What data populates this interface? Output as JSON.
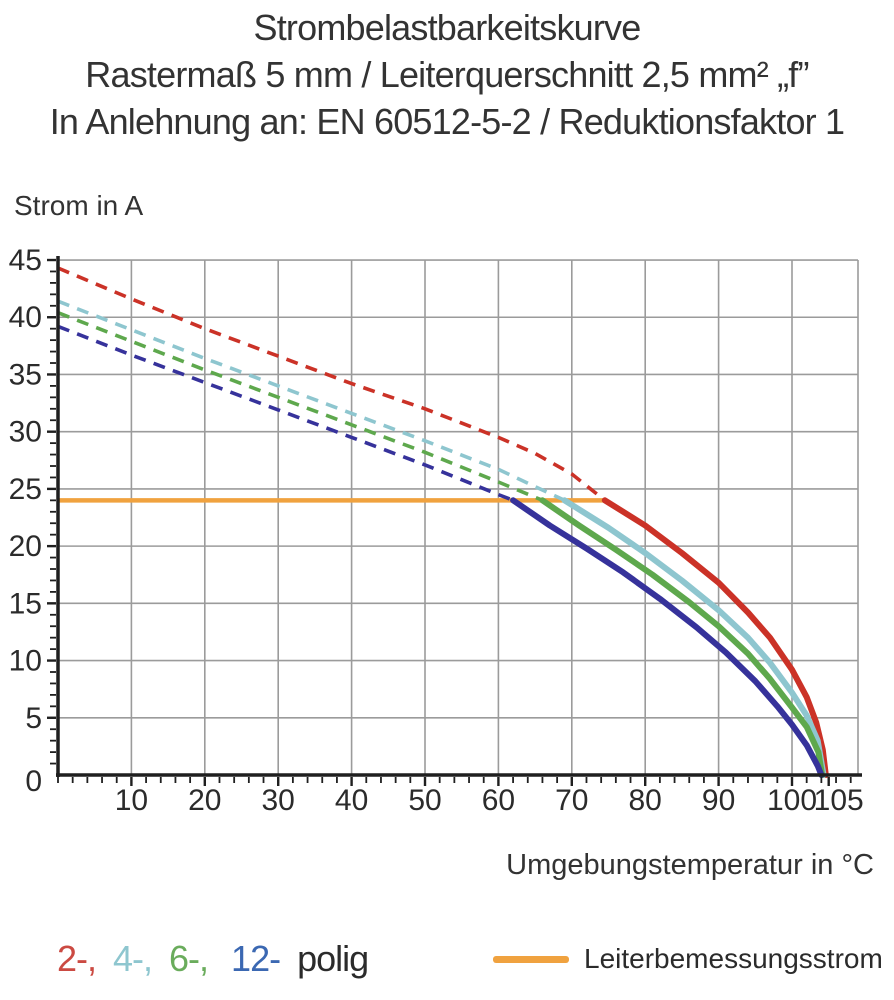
{
  "title": {
    "line1": "Strombelastbarkeitskurve",
    "line2": "Rastermaß 5 mm / Leiterquerschnitt 2,5 mm² „f”",
    "line3": "In Anlehnung an: EN 60512-5-2 / Reduktionsfaktor 1"
  },
  "legend": {
    "poles": [
      {
        "label": "2-,",
        "color": "#cb4a42"
      },
      {
        "label": "4-,",
        "color": "#8ec6cf"
      },
      {
        "label": "6-,",
        "color": "#6aac5c"
      },
      {
        "label": "12-",
        "color": "#3b68b2"
      },
      {
        "label": "polig",
        "color": "#2b2b2b"
      }
    ],
    "limit_label": "Leiterbemessungsstrom"
  },
  "chart_data": {
    "type": "line",
    "title": "Strombelastbarkeitskurve",
    "subtitle": "Rastermaß 5 mm / Leiterquerschnitt 2,5 mm² „f” / In Anlehnung an: EN 60512-5-2 / Reduktionsfaktor 1",
    "xlabel": "Umgebungstemperatur in °C",
    "ylabel": "Strom in A",
    "xlim": [
      0,
      109
    ],
    "ylim": [
      0,
      45
    ],
    "grid": true,
    "x_major_grid_step": 10,
    "y_major_grid_step": 5,
    "x_minor_tick_step": 2,
    "y_minor_tick_step": 1,
    "x_tick_labels": [
      {
        "t": 10,
        "label": "10"
      },
      {
        "t": 20,
        "label": "20"
      },
      {
        "t": 30,
        "label": "30"
      },
      {
        "t": 40,
        "label": "40"
      },
      {
        "t": 50,
        "label": "50"
      },
      {
        "t": 60,
        "label": "60"
      },
      {
        "t": 70,
        "label": "70"
      },
      {
        "t": 80,
        "label": "80"
      },
      {
        "t": 90,
        "label": "90"
      },
      {
        "t": 100,
        "label": "100"
      },
      {
        "t": 105,
        "label": "105",
        "dx": 10
      }
    ],
    "y_tick_labels": [
      {
        "a": 45,
        "label": "45"
      },
      {
        "a": 40,
        "label": "40"
      },
      {
        "a": 35,
        "label": "35"
      },
      {
        "a": 30,
        "label": "30"
      },
      {
        "a": 25,
        "label": "25"
      },
      {
        "a": 20,
        "label": "20"
      },
      {
        "a": 15,
        "label": "15"
      },
      {
        "a": 10,
        "label": "10"
      },
      {
        "a": 5,
        "label": "5"
      },
      {
        "a": 0,
        "label": "0",
        "dy": 6
      }
    ],
    "axis_color": "#1f1f1f",
    "grid_color": "#9b9b9b",
    "limit_line": {
      "label": "Leiterbemessungsstrom",
      "value": 24,
      "color": "#f0a23f",
      "x_start": 0,
      "x_end": 74.5
    },
    "series": [
      {
        "name": "2-polig",
        "color": "#cb3227",
        "dashed_above_limit": true,
        "points_dashed": [
          [
            0,
            44.3
          ],
          [
            10,
            41.6
          ],
          [
            20,
            39.0
          ],
          [
            30,
            36.6
          ],
          [
            40,
            34.2
          ],
          [
            50,
            32.0
          ],
          [
            60,
            29.5
          ],
          [
            65,
            28.1
          ],
          [
            70,
            26.3
          ],
          [
            74.5,
            24.0
          ]
        ],
        "points_solid": [
          [
            74.5,
            24.0
          ],
          [
            80,
            21.8
          ],
          [
            85,
            19.4
          ],
          [
            90,
            16.8
          ],
          [
            94,
            14.2
          ],
          [
            97,
            12.0
          ],
          [
            100,
            9.2
          ],
          [
            102,
            6.8
          ],
          [
            103.3,
            4.6
          ],
          [
            104.2,
            2.2
          ],
          [
            104.6,
            0
          ]
        ]
      },
      {
        "name": "4-polig",
        "color": "#8ec6cf",
        "dashed_above_limit": true,
        "points_dashed": [
          [
            0,
            41.4
          ],
          [
            10,
            38.9
          ],
          [
            20,
            36.4
          ],
          [
            30,
            34.0
          ],
          [
            40,
            31.6
          ],
          [
            50,
            29.2
          ],
          [
            60,
            26.7
          ],
          [
            65,
            25.2
          ],
          [
            69,
            24.0
          ]
        ],
        "points_solid": [
          [
            69,
            24.0
          ],
          [
            75,
            21.6
          ],
          [
            80,
            19.4
          ],
          [
            85,
            17.0
          ],
          [
            90,
            14.4
          ],
          [
            94,
            12.0
          ],
          [
            97,
            9.8
          ],
          [
            100,
            7.2
          ],
          [
            102,
            5.2
          ],
          [
            103.5,
            3.0
          ],
          [
            104.3,
            0
          ]
        ]
      },
      {
        "name": "6-polig",
        "color": "#5ea84d",
        "dashed_above_limit": true,
        "points_dashed": [
          [
            0,
            40.4
          ],
          [
            10,
            37.9
          ],
          [
            20,
            35.4
          ],
          [
            30,
            33.0
          ],
          [
            40,
            30.6
          ],
          [
            50,
            28.2
          ],
          [
            60,
            25.6
          ],
          [
            66,
            24.0
          ]
        ],
        "points_solid": [
          [
            66,
            24.0
          ],
          [
            71,
            21.8
          ],
          [
            76,
            19.7
          ],
          [
            81,
            17.5
          ],
          [
            86,
            15.1
          ],
          [
            90,
            13.0
          ],
          [
            94,
            10.6
          ],
          [
            97,
            8.4
          ],
          [
            100,
            5.9
          ],
          [
            102,
            4.2
          ],
          [
            103.6,
            2.0
          ],
          [
            104.1,
            0
          ]
        ]
      },
      {
        "name": "12-polig",
        "color": "#36329b",
        "dashed_above_limit": true,
        "points_dashed": [
          [
            0,
            39.2
          ],
          [
            10,
            36.7
          ],
          [
            20,
            34.3
          ],
          [
            30,
            31.9
          ],
          [
            40,
            29.5
          ],
          [
            50,
            27.1
          ],
          [
            55,
            25.8
          ],
          [
            60,
            24.5
          ],
          [
            62,
            24.0
          ]
        ],
        "points_solid": [
          [
            62,
            24.0
          ],
          [
            67,
            21.8
          ],
          [
            72,
            19.8
          ],
          [
            77,
            17.7
          ],
          [
            82,
            15.4
          ],
          [
            87,
            12.9
          ],
          [
            91,
            10.7
          ],
          [
            95,
            8.2
          ],
          [
            98,
            6.0
          ],
          [
            100,
            4.4
          ],
          [
            102,
            2.6
          ],
          [
            103.5,
            0.8
          ],
          [
            104,
            0
          ]
        ]
      }
    ]
  }
}
